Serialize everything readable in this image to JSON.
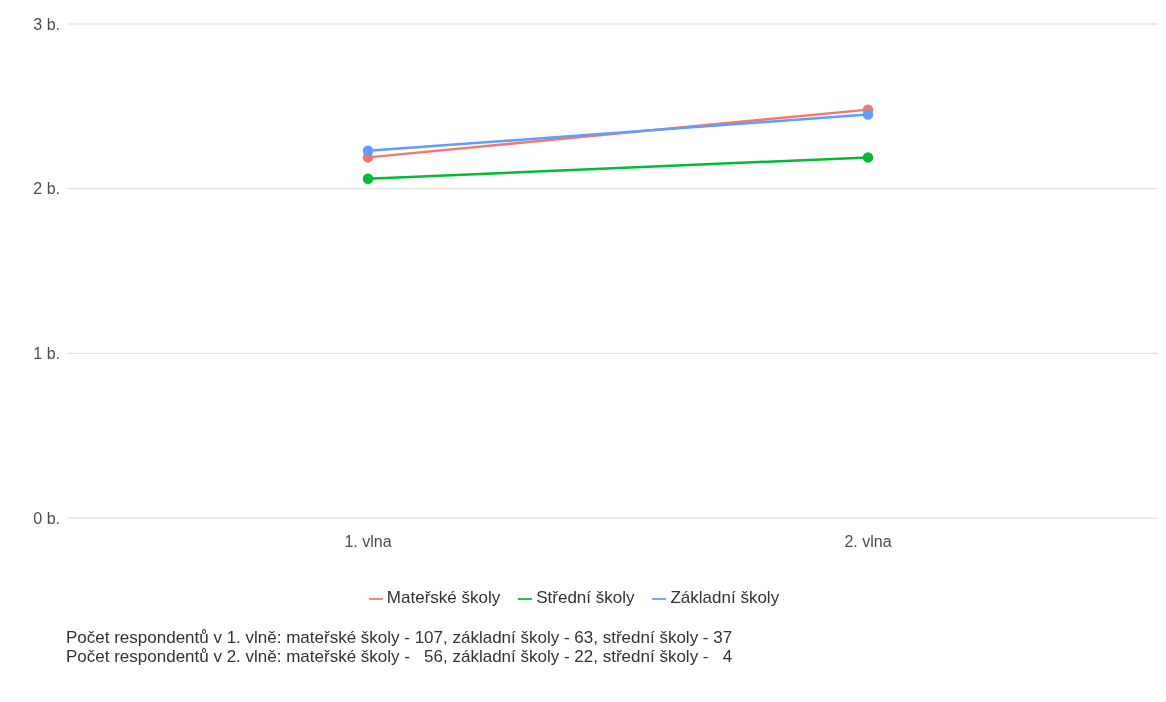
{
  "chart_data": {
    "type": "line",
    "categories": [
      "1. vlna",
      "2. vlna"
    ],
    "series": [
      {
        "name": "Mateřské školy",
        "color": "#f8766d",
        "values": [
          2.19,
          2.48
        ]
      },
      {
        "name": "Střední školy",
        "color": "#00ba38",
        "values": [
          2.06,
          2.19
        ]
      },
      {
        "name": "Základní školy",
        "color": "#619cff",
        "values": [
          2.23,
          2.45
        ]
      }
    ],
    "ylim": [
      0,
      3
    ],
    "yticks": [
      {
        "value": 0,
        "label": "0 b."
      },
      {
        "value": 1,
        "label": "1 b."
      },
      {
        "value": 2,
        "label": "2 b."
      },
      {
        "value": 3,
        "label": "3 b."
      }
    ],
    "grid": "y",
    "legend": "bottom",
    "marker": "circle",
    "line_style": "solid",
    "annotations": [
      "Počet respondentů v 1. vlně: mateřské školy - 107, základní školy - 63, střední školy - 37",
      "Počet respondentů v 2. vlně: mateřské školy -   56, základní školy - 22, střední školy -   4"
    ]
  }
}
